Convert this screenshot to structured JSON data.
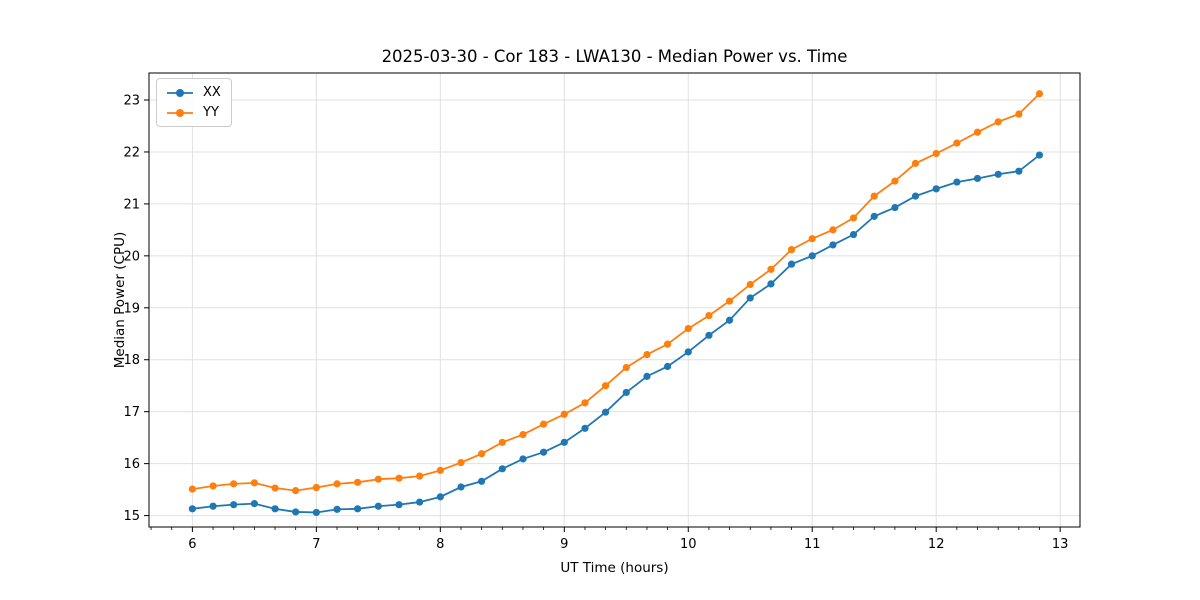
{
  "figure": {
    "background": "#ffffff",
    "spine_color": "#000000",
    "grid_color": "#e0e0e0"
  },
  "chart_data": {
    "type": "line",
    "title": "2025-03-30 - Cor 183 - LWA130 - Median Power vs. Time",
    "xlabel": "UT Time (hours)",
    "ylabel": "Median Power (CPU)",
    "grid": "major-both",
    "legend_position": "upper-left",
    "xlim": [
      5.65,
      13.16
    ],
    "ylim": [
      14.78,
      23.52
    ],
    "xticks": [
      6,
      7,
      8,
      9,
      10,
      11,
      12,
      13
    ],
    "yticks": [
      15,
      16,
      17,
      18,
      19,
      20,
      21,
      22,
      23
    ],
    "x_minor_tick_interval_hours": 0.1667,
    "x": [
      6.0,
      6.167,
      6.333,
      6.5,
      6.667,
      6.833,
      7.0,
      7.167,
      7.333,
      7.5,
      7.667,
      7.833,
      8.0,
      8.167,
      8.333,
      8.5,
      8.667,
      8.833,
      9.0,
      9.167,
      9.333,
      9.5,
      9.667,
      9.833,
      10.0,
      10.167,
      10.333,
      10.5,
      10.667,
      10.833,
      11.0,
      11.167,
      11.333,
      11.5,
      11.667,
      11.833,
      12.0,
      12.167,
      12.333,
      12.5,
      12.667,
      12.833
    ],
    "series": [
      {
        "name": "XX",
        "color": "#1f77b4",
        "values": [
          15.13,
          15.18,
          15.21,
          15.23,
          15.13,
          15.07,
          15.06,
          15.12,
          15.13,
          15.18,
          15.21,
          15.26,
          15.36,
          15.55,
          15.66,
          15.9,
          16.09,
          16.22,
          16.41,
          16.68,
          16.99,
          17.37,
          17.68,
          17.87,
          18.15,
          18.47,
          18.76,
          19.19,
          19.46,
          19.84,
          20.0,
          20.21,
          20.41,
          20.76,
          20.93,
          21.15,
          21.29,
          21.42,
          21.49,
          21.57,
          21.63,
          21.94
        ]
      },
      {
        "name": "YY",
        "color": "#ff7f0e",
        "values": [
          15.51,
          15.57,
          15.61,
          15.63,
          15.53,
          15.48,
          15.54,
          15.61,
          15.64,
          15.7,
          15.72,
          15.76,
          15.87,
          16.02,
          16.19,
          16.41,
          16.56,
          16.76,
          16.95,
          17.17,
          17.5,
          17.85,
          18.1,
          18.3,
          18.6,
          18.85,
          19.13,
          19.45,
          19.74,
          20.12,
          20.33,
          20.5,
          20.73,
          21.15,
          21.44,
          21.78,
          21.97,
          22.17,
          22.38,
          22.58,
          22.73,
          23.12
        ]
      }
    ]
  }
}
